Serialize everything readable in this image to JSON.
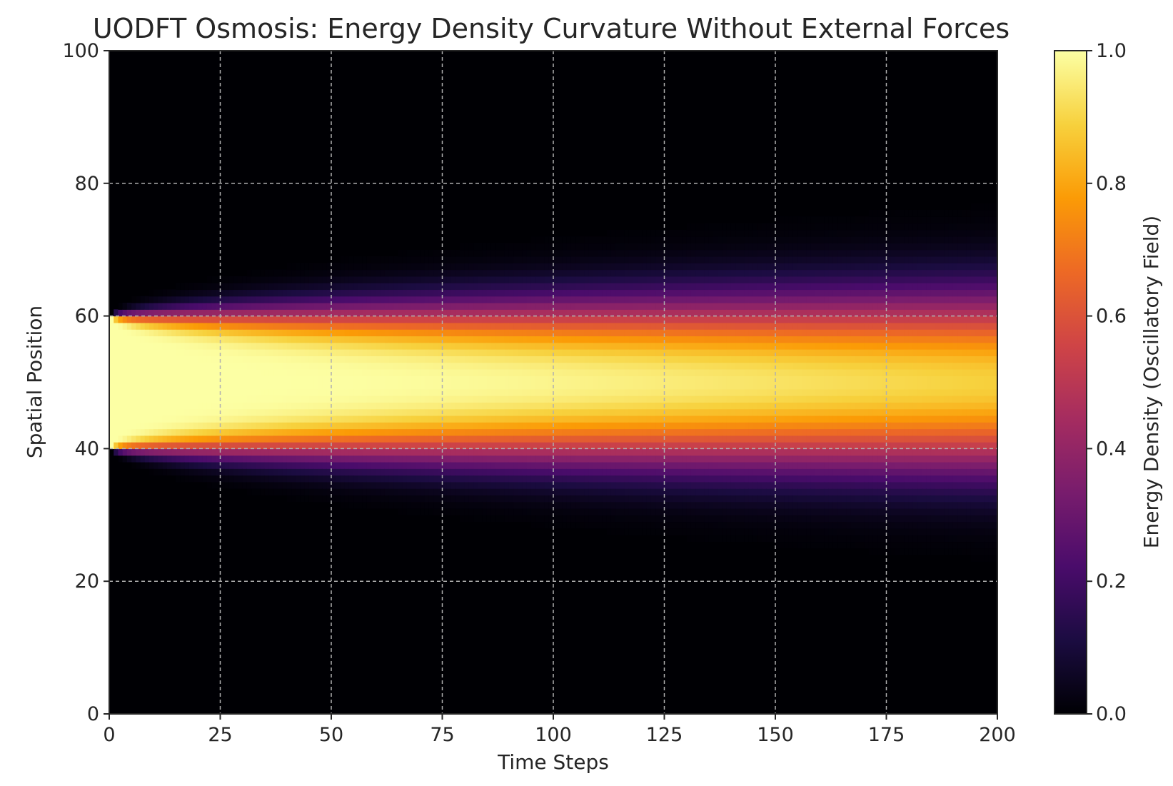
{
  "chart_data": {
    "type": "heatmap",
    "title": "UODFT Osmosis: Energy Density Curvature Without External Forces",
    "xlabel": "Time Steps",
    "ylabel": "Spatial Position",
    "colorbar_label": "Energy Density (Oscillatory Field)",
    "colormap": "inferno",
    "xlim": [
      0,
      200
    ],
    "ylim": [
      0,
      100
    ],
    "clim": [
      0.0,
      1.0
    ],
    "x_ticks": [
      "0",
      "25",
      "50",
      "75",
      "100",
      "125",
      "150",
      "175",
      "200"
    ],
    "y_ticks": [
      "0",
      "20",
      "40",
      "60",
      "80",
      "100"
    ],
    "colorbar_ticks": [
      "0.0",
      "0.2",
      "0.4",
      "0.6",
      "0.8",
      "1.0"
    ],
    "grid": true,
    "initial_band": [
      40,
      60
    ],
    "peak_value": 1.0,
    "colorbar_colors": [
      "#000004",
      "#1b0c41",
      "#4a0c6b",
      "#781c6d",
      "#a52c60",
      "#cf4446",
      "#ed6925",
      "#fb9b06",
      "#f7d13d",
      "#fcffa4"
    ]
  }
}
